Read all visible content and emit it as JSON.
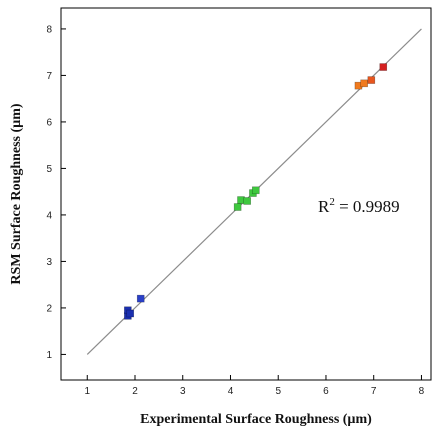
{
  "chart_data": {
    "type": "scatter",
    "title": "",
    "xlabel": "Experimental Surface Roughness (µm)",
    "ylabel": "RSM Surface Roughness (µm)",
    "xlim": [
      0.45,
      8.2
    ],
    "ylim": [
      0.45,
      8.45
    ],
    "x_ticks": [
      "1",
      "2",
      "3",
      "4",
      "5",
      "6",
      "7",
      "8"
    ],
    "y_ticks": [
      "1",
      "2",
      "3",
      "4",
      "5",
      "6",
      "7",
      "8"
    ],
    "grid": false,
    "fit_line": {
      "x": [
        1,
        8
      ],
      "y": [
        1,
        8
      ],
      "color": "#8c8c8c"
    },
    "annotation": {
      "base": "R",
      "sup": "2",
      "rest": " = 0.9989"
    },
    "points": [
      {
        "x": 1.85,
        "y": 1.83,
        "color": "#1a2fb0"
      },
      {
        "x": 1.85,
        "y": 1.95,
        "color": "#1a2fb0"
      },
      {
        "x": 1.9,
        "y": 1.88,
        "color": "#1a2fb0"
      },
      {
        "x": 2.12,
        "y": 2.2,
        "color": "#2a40c8"
      },
      {
        "x": 4.15,
        "y": 4.17,
        "color": "#3ec83e"
      },
      {
        "x": 4.22,
        "y": 4.32,
        "color": "#3ec83e"
      },
      {
        "x": 4.35,
        "y": 4.3,
        "color": "#3ec83e"
      },
      {
        "x": 4.47,
        "y": 4.47,
        "color": "#3ec83e"
      },
      {
        "x": 4.53,
        "y": 4.53,
        "color": "#3ec83e"
      },
      {
        "x": 6.68,
        "y": 6.78,
        "color": "#f07a1e"
      },
      {
        "x": 6.8,
        "y": 6.83,
        "color": "#f07a1e"
      },
      {
        "x": 6.95,
        "y": 6.9,
        "color": "#e8561e"
      },
      {
        "x": 7.2,
        "y": 7.18,
        "color": "#d42020"
      }
    ]
  }
}
